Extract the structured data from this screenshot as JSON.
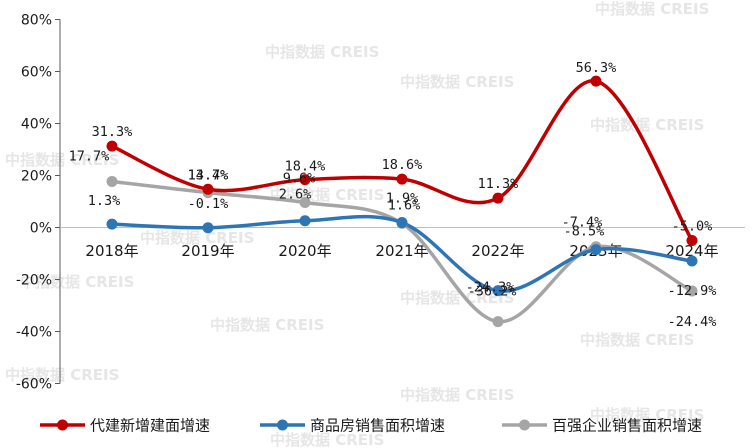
{
  "watermark": "中指数据 CREIS",
  "chart_data": {
    "type": "line",
    "categories": [
      "2018年",
      "2019年",
      "2020年",
      "2021年",
      "2022年",
      "2023年",
      "2024年"
    ],
    "ylim": [
      -60,
      80
    ],
    "yticks": [
      -60,
      -40,
      -20,
      0,
      20,
      40,
      60,
      80
    ],
    "ytick_labels": [
      "-60%",
      "-40%",
      "-20%",
      "0%",
      "20%",
      "40%",
      "60%",
      "80%"
    ],
    "smooth": true,
    "legend_position": "bottom",
    "series": [
      {
        "name": "代建新增建面增速",
        "color": "#c00000",
        "values": [
          31.3,
          14.7,
          18.4,
          18.6,
          11.3,
          56.3,
          -5.0
        ],
        "labels": [
          "31.3%",
          "14.7%",
          "18.4%",
          "18.6%",
          "11.3%",
          "56.3%",
          "-5.0%"
        ]
      },
      {
        "name": "商品房销售面积增速",
        "color": "#2e75b6",
        "values": [
          1.3,
          -0.1,
          2.6,
          1.9,
          -24.3,
          -8.5,
          -12.9
        ],
        "labels": [
          "1.3%",
          "-0.1%",
          "2.6%",
          "1.9%",
          "-24.3%",
          "-8.5%",
          "-12.9%"
        ]
      },
      {
        "name": "百强企业销售面积增速",
        "color": "#a5a5a5",
        "values": [
          17.7,
          13.4,
          9.6,
          1.6,
          -36.2,
          -7.4,
          -24.4
        ],
        "labels": [
          "17.7%",
          "13.4%",
          "9.6%",
          "1.6%",
          "-36.2%",
          "-7.4%",
          "-24.4%"
        ]
      }
    ]
  }
}
